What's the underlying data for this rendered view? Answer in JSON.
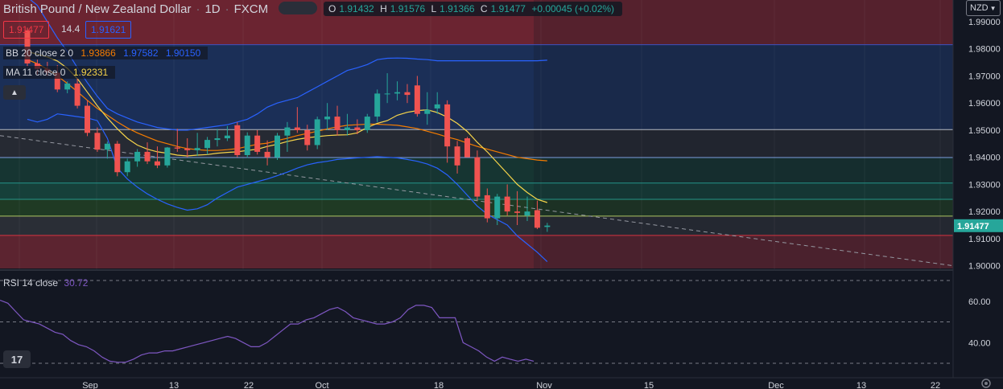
{
  "header": {
    "symbol_title": "British Pound / New Zealand Dollar",
    "interval": "1D",
    "exchange": "FXCM",
    "ohlc": {
      "open_label": "O",
      "open": "1.91432",
      "high_label": "H",
      "high": "1.91576",
      "low_label": "L",
      "low": "1.91366",
      "close_label": "C",
      "close": "1.91477",
      "change": "+0.00045 (+0.02%)"
    }
  },
  "trade": {
    "sell_price": "1.91477",
    "spread": "14.4",
    "buy_price": "1.91621"
  },
  "legends": {
    "bb": {
      "label": "BB 20 close 2 0",
      "basis": "1.93866",
      "upper": "1.97582",
      "lower": "1.90150"
    },
    "ma": {
      "label": "MA 11 close 0",
      "value": "1.92331"
    },
    "rsi": {
      "label": "RSI 14 close",
      "value": "30.72"
    }
  },
  "currency_button": "NZD",
  "current_price_tag": "1.91477",
  "colors": {
    "up": "#26a69a",
    "down": "#f05350",
    "bb_band": "#2962ff",
    "bb_basis": "#f57c00",
    "ma": "#f7d54a",
    "rsi": "#7e57c2",
    "price_tag": "#26a69a"
  },
  "chart_data": {
    "type": "candlestick",
    "price_axis": {
      "ticks": [
        "1.99000",
        "1.98000",
        "1.97000",
        "1.96000",
        "1.95000",
        "1.94000",
        "1.93000",
        "1.92000",
        "1.91000",
        "1.90000"
      ],
      "ylim": [
        1.899,
        1.998
      ]
    },
    "time_axis": {
      "ticks": [
        "Sep",
        "13",
        "22",
        "Oct",
        "18",
        "Nov",
        "15",
        "Dec",
        "13",
        "22"
      ]
    },
    "horizontal_levels": [
      1.9815,
      1.9502,
      1.9399,
      1.9305,
      1.9245,
      1.9183,
      1.9112
    ],
    "zones": [
      {
        "from": 1.9815,
        "to": 1.998,
        "color": "#6b2431"
      },
      {
        "from": 1.9502,
        "to": 1.9815,
        "color": "#1b2f57"
      },
      {
        "from": 1.9399,
        "to": 1.9502,
        "color": "#262a33"
      },
      {
        "from": 1.9305,
        "to": 1.9399,
        "color": "#163532"
      },
      {
        "from": 1.9245,
        "to": 1.9305,
        "color": "#16403a"
      },
      {
        "from": 1.9183,
        "to": 1.9245,
        "color": "#1f3a24"
      },
      {
        "from": 1.9112,
        "to": 1.9183,
        "color": "#2a2e36"
      },
      {
        "from": 1.899,
        "to": 1.9112,
        "color": "#5c2430"
      }
    ],
    "candles": [
      [
        1.9868,
        1.9878,
        1.9736,
        1.9746
      ],
      [
        1.9746,
        1.976,
        1.9706,
        1.9726
      ],
      [
        1.9726,
        1.9752,
        1.97,
        1.9712
      ],
      [
        1.9712,
        1.974,
        1.964,
        1.965
      ],
      [
        1.965,
        1.968,
        1.9636,
        1.9672
      ],
      [
        1.9672,
        1.969,
        1.958,
        1.959
      ],
      [
        1.959,
        1.961,
        1.9478,
        1.949
      ],
      [
        1.949,
        1.951,
        1.942,
        1.9428
      ],
      [
        1.9428,
        1.9458,
        1.9395,
        1.945
      ],
      [
        1.945,
        1.946,
        1.933,
        1.9345
      ],
      [
        1.9345,
        1.9395,
        1.933,
        1.9385
      ],
      [
        1.9385,
        1.943,
        1.9365,
        1.942
      ],
      [
        1.942,
        1.9455,
        1.9375,
        1.9385
      ],
      [
        1.9385,
        1.944,
        1.936,
        1.937
      ],
      [
        1.937,
        1.9438,
        1.9362,
        1.9436
      ],
      [
        1.9436,
        1.9505,
        1.942,
        1.9432
      ],
      [
        1.9432,
        1.947,
        1.94,
        1.9426
      ],
      [
        1.9426,
        1.949,
        1.9405,
        1.9434
      ],
      [
        1.9434,
        1.9475,
        1.941,
        1.9464
      ],
      [
        1.9464,
        1.9505,
        1.944,
        1.947
      ],
      [
        1.947,
        1.9515,
        1.946,
        1.948
      ],
      [
        1.9518,
        1.953,
        1.94,
        1.9408
      ],
      [
        1.9408,
        1.9492,
        1.9398,
        1.948
      ],
      [
        1.948,
        1.95,
        1.941,
        1.942
      ],
      [
        1.942,
        1.9462,
        1.937,
        1.94
      ],
      [
        1.94,
        1.949,
        1.939,
        1.948
      ],
      [
        1.948,
        1.953,
        1.942,
        1.951
      ],
      [
        1.951,
        1.9585,
        1.949,
        1.95
      ],
      [
        1.95,
        1.952,
        1.9425,
        1.9445
      ],
      [
        1.9445,
        1.955,
        1.943,
        1.954
      ],
      [
        1.954,
        1.96,
        1.95,
        1.955
      ],
      [
        1.955,
        1.959,
        1.948,
        1.95
      ],
      [
        1.95,
        1.956,
        1.948,
        1.951
      ],
      [
        1.951,
        1.954,
        1.9485,
        1.95
      ],
      [
        1.95,
        1.956,
        1.949,
        1.955
      ],
      [
        1.955,
        1.965,
        1.953,
        1.9635
      ],
      [
        1.9635,
        1.971,
        1.96,
        1.9635
      ],
      [
        1.9635,
        1.968,
        1.961,
        1.964
      ],
      [
        1.964,
        1.967,
        1.96,
        1.963
      ],
      [
        1.9665,
        1.97,
        1.955,
        1.956
      ],
      [
        1.956,
        1.964,
        1.952,
        1.9575
      ],
      [
        1.958,
        1.964,
        1.956,
        1.9595
      ],
      [
        1.9595,
        1.961,
        1.938,
        1.944
      ],
      [
        1.944,
        1.946,
        1.934,
        1.937
      ],
      [
        1.947,
        1.9475,
        1.94,
        1.94
      ],
      [
        1.94,
        1.9425,
        1.924,
        1.9255
      ],
      [
        1.926,
        1.9285,
        1.916,
        1.9175
      ],
      [
        1.9175,
        1.9265,
        1.915,
        1.9255
      ],
      [
        1.9255,
        1.93,
        1.9185,
        1.92
      ],
      [
        1.92,
        1.9275,
        1.915,
        1.9195
      ],
      [
        1.9185,
        1.9255,
        1.9165,
        1.92
      ],
      [
        1.9205,
        1.924,
        1.9135,
        1.914
      ],
      [
        1.9143,
        1.9158,
        1.9125,
        1.9148
      ]
    ],
    "bb_upper": [
      1.999,
      1.996,
      1.99,
      1.984,
      1.979,
      1.973,
      1.9675,
      1.9625,
      1.958,
      1.956,
      1.9545,
      1.953,
      1.952,
      1.951,
      1.9505,
      1.95,
      1.95,
      1.9505,
      1.951,
      1.9515,
      1.952,
      1.953,
      1.954,
      1.956,
      1.9585,
      1.96,
      1.961,
      1.962,
      1.964,
      1.966,
      1.968,
      1.97,
      1.972,
      1.973,
      1.9742,
      1.976,
      1.9765,
      1.9766,
      1.9765,
      1.9762,
      1.976,
      1.9756,
      1.9756,
      1.9756,
      1.9756,
      1.9756,
      1.9756,
      1.9756,
      1.9756,
      1.9756,
      1.9756,
      1.9756,
      1.9758
    ],
    "bb_basis": [
      1.976,
      1.9745,
      1.9725,
      1.97,
      1.9672,
      1.9642,
      1.961,
      1.958,
      1.9555,
      1.953,
      1.9508,
      1.949,
      1.9475,
      1.946,
      1.945,
      1.944,
      1.9432,
      1.9428,
      1.9425,
      1.9425,
      1.9428,
      1.9432,
      1.944,
      1.9448,
      1.9452,
      1.9462,
      1.947,
      1.948,
      1.9488,
      1.9496,
      1.9505,
      1.9512,
      1.9518,
      1.952,
      1.9522,
      1.9522,
      1.952,
      1.9518,
      1.9512,
      1.9506,
      1.9496,
      1.9486,
      1.9475,
      1.9465,
      1.9452,
      1.944,
      1.943,
      1.942,
      1.941,
      1.94,
      1.9395,
      1.939,
      1.9387
    ],
    "bb_lower": [
      1.954,
      1.953,
      1.954,
      1.956,
      1.9555,
      1.955,
      1.9545,
      1.9535,
      1.947,
      1.936,
      1.932,
      1.929,
      1.9265,
      1.9245,
      1.9228,
      1.9215,
      1.9205,
      1.921,
      1.9225,
      1.925,
      1.927,
      1.929,
      1.93,
      1.931,
      1.932,
      1.9332,
      1.9345,
      1.936,
      1.9372,
      1.938,
      1.9385,
      1.9392,
      1.9395,
      1.9398,
      1.94,
      1.9402,
      1.94,
      1.9398,
      1.9392,
      1.9385,
      1.9375,
      1.936,
      1.9335,
      1.93,
      1.926,
      1.922,
      1.919,
      1.917,
      1.915,
      1.911,
      1.908,
      1.905,
      1.9015
    ],
    "ma11": [
      1.979,
      1.978,
      1.977,
      1.9755,
      1.9728,
      1.969,
      1.964,
      1.959,
      1.9545,
      1.9505,
      1.947,
      1.9445,
      1.943,
      1.942,
      1.9415,
      1.9408,
      1.9405,
      1.9408,
      1.941,
      1.9415,
      1.9418,
      1.942,
      1.9425,
      1.943,
      1.944,
      1.9448,
      1.9458,
      1.9466,
      1.9472,
      1.9476,
      1.948,
      1.9482,
      1.9483,
      1.949,
      1.951,
      1.9525,
      1.9535,
      1.9555,
      1.9566,
      1.9572,
      1.9575,
      1.9565,
      1.9548,
      1.9525,
      1.9495,
      1.9455,
      1.942,
      1.938,
      1.934,
      1.93,
      1.927,
      1.9245,
      1.9233
    ],
    "trendline": [
      [
        0,
        1.948
      ],
      [
        1184,
        1.9
      ]
    ],
    "rsi": {
      "ylim": [
        30,
        70
      ],
      "ticks": [
        "60.00",
        "40.00"
      ],
      "levels": [
        70,
        50,
        30
      ],
      "values": [
        60.5,
        59,
        55,
        51,
        50,
        49,
        47,
        45,
        44,
        41,
        39,
        38,
        36,
        33,
        31,
        30.5,
        30.5,
        32,
        34,
        35,
        35,
        36,
        36,
        37,
        38,
        39,
        40,
        41,
        42,
        43,
        42,
        40,
        38,
        38,
        40,
        43,
        46,
        49,
        49,
        51,
        52,
        54,
        56,
        57,
        55,
        52,
        51,
        50,
        49,
        49,
        50,
        52,
        56,
        58,
        58,
        57,
        52,
        52,
        52,
        40,
        38,
        36,
        33,
        31,
        33,
        32,
        31,
        32,
        31
      ]
    }
  }
}
